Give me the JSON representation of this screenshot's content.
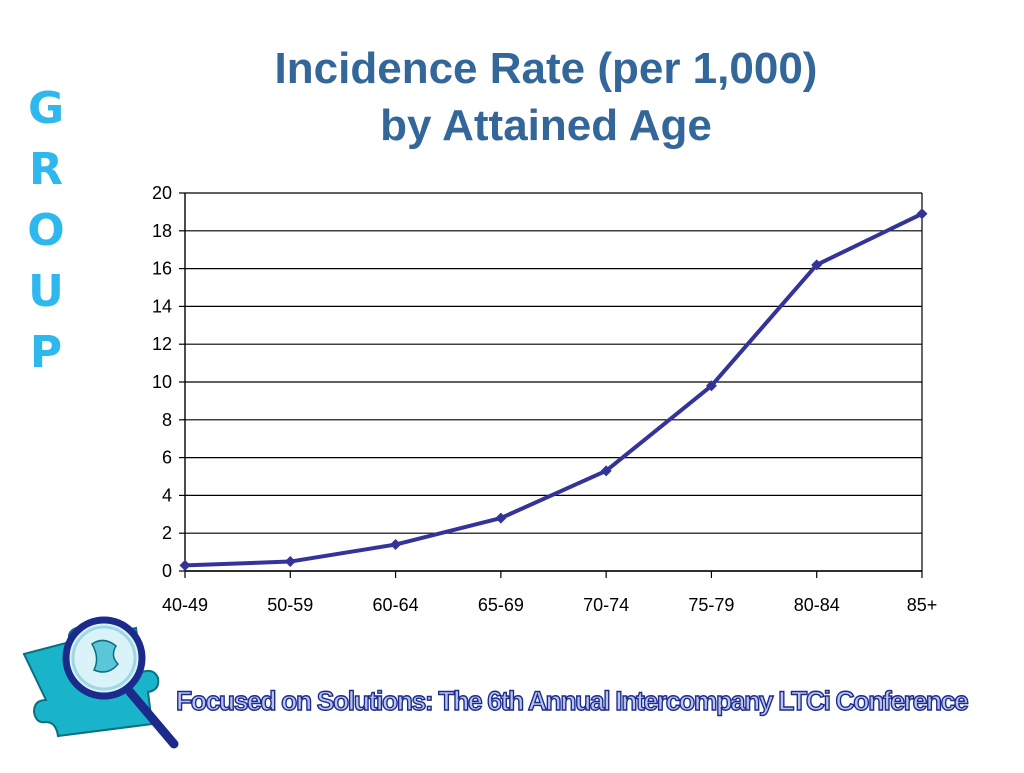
{
  "side_word": [
    "G",
    "R",
    "O",
    "U",
    "P"
  ],
  "title": {
    "line1": "Incidence Rate (per 1,000)",
    "line2": "by Attained Age"
  },
  "footer": {
    "text": "Focused on Solutions:  The 6th Annual Intercompany LTCi Conference"
  },
  "logo": {
    "icon": "puzzle-magnifier-icon"
  },
  "colors": {
    "title": "#336699",
    "side_word": "#2fb8ee",
    "series": "#333399",
    "footer_fill": "#b8c4f0",
    "footer_stroke": "#1c2a8c"
  },
  "chart_data": {
    "type": "line",
    "title": "Incidence Rate (per 1,000) by Attained Age",
    "xlabel": "",
    "ylabel": "",
    "categories": [
      "40-49",
      "50-59",
      "60-64",
      "65-69",
      "70-74",
      "75-79",
      "80-84",
      "85+"
    ],
    "series": [
      {
        "values": [
          0.3,
          0.5,
          1.4,
          2.8,
          5.3,
          9.8,
          16.2,
          18.9
        ]
      }
    ],
    "ylim": [
      0,
      20
    ],
    "yticks": [
      0,
      2,
      4,
      6,
      8,
      10,
      12,
      14,
      16,
      18,
      20
    ],
    "grid": true,
    "legend": "none",
    "marker": "diamond"
  }
}
